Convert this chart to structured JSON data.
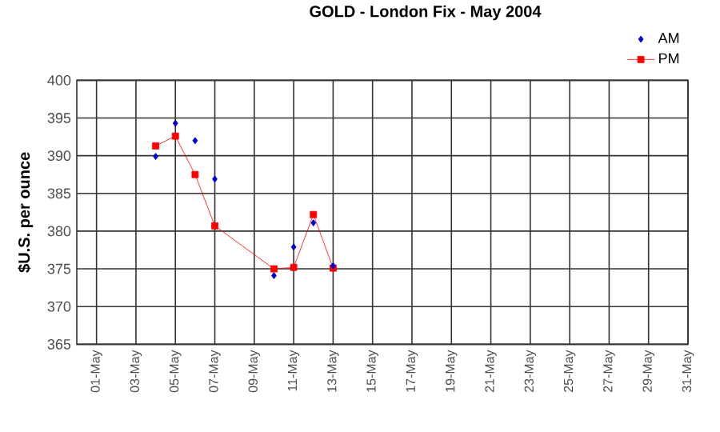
{
  "chart_data": {
    "type": "line",
    "title": "GOLD - London Fix - May 2004",
    "ylabel": "$U.S. per ounce",
    "x": [
      "2004-05-04",
      "2004-05-05",
      "2004-05-06",
      "2004-05-07",
      "2004-05-10",
      "2004-05-11",
      "2004-05-12",
      "2004-05-13"
    ],
    "series": [
      {
        "name": "AM",
        "type": "scatter",
        "marker": "diamond",
        "color": "#0000cc",
        "values": [
          389.9,
          394.3,
          392.0,
          386.9,
          374.1,
          377.9,
          381.1,
          375.4
        ]
      },
      {
        "name": "PM",
        "marker": "square",
        "color": "#ff0000",
        "values": [
          391.3,
          392.6,
          387.5,
          380.7,
          375.0,
          375.2,
          382.2,
          375.1
        ]
      }
    ],
    "xlim": [
      "2004-04-30",
      "2004-05-31"
    ],
    "xticks": [
      {
        "value": "2004-05-01",
        "label": "01-May"
      },
      {
        "value": "2004-05-03",
        "label": "03-May"
      },
      {
        "value": "2004-05-05",
        "label": "05-May"
      },
      {
        "value": "2004-05-07",
        "label": "07-May"
      },
      {
        "value": "2004-05-09",
        "label": "09-May"
      },
      {
        "value": "2004-05-11",
        "label": "11-May"
      },
      {
        "value": "2004-05-13",
        "label": "13-May"
      },
      {
        "value": "2004-05-15",
        "label": "15-May"
      },
      {
        "value": "2004-05-17",
        "label": "17-May"
      },
      {
        "value": "2004-05-19",
        "label": "19-May"
      },
      {
        "value": "2004-05-21",
        "label": "21-May"
      },
      {
        "value": "2004-05-23",
        "label": "23-May"
      },
      {
        "value": "2004-05-25",
        "label": "25-May"
      },
      {
        "value": "2004-05-27",
        "label": "27-May"
      },
      {
        "value": "2004-05-29",
        "label": "29-May"
      },
      {
        "value": "2004-05-31",
        "label": "31-May"
      }
    ],
    "ylim": [
      365,
      400
    ],
    "yticks": [
      365,
      370,
      375,
      380,
      385,
      390,
      395,
      400
    ],
    "grid": true,
    "legend": "top right"
  }
}
